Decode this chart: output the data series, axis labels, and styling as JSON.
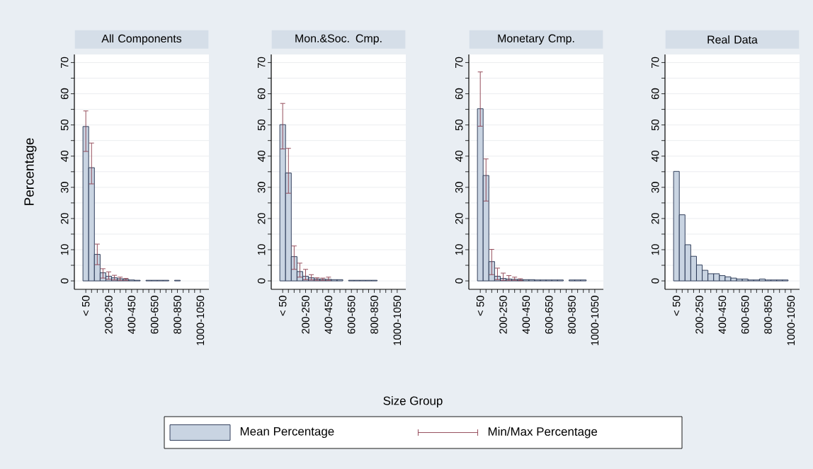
{
  "chart_data": [
    {
      "type": "bar",
      "title": "All Components",
      "ylabel": "Percentage",
      "legend": "bottom",
      "annotations": [
        "Min/Max Percentage"
      ],
      "categories": [
        "< 50",
        null,
        null,
        null,
        "200-250",
        null,
        null,
        null,
        "400-450",
        null,
        null,
        null,
        "600-650",
        null,
        null,
        null,
        "800-850",
        null,
        null,
        null,
        "1000-1050"
      ],
      "ylim": [
        -2.7,
        72.6
      ],
      "yticks": [
        0,
        {
          "value": 5,
          "label": null
        },
        10,
        {
          "value": 15,
          "label": null
        },
        20,
        {
          "value": 25,
          "label": null
        },
        30,
        {
          "value": 35,
          "label": null
        },
        40,
        {
          "value": 45,
          "label": null
        },
        50,
        {
          "value": 55,
          "label": null
        },
        60,
        {
          "value": 65,
          "label": null
        },
        70
      ],
      "grid": "y",
      "series": [
        {
          "name": "Mean Percentage",
          "color": "#c9d4e2",
          "values": [
            49.5,
            36.3,
            8.5,
            2.6,
            1.5,
            1.0,
            0.7,
            0.5,
            0.3,
            0.2,
            null,
            0.2,
            0.2,
            0.2,
            0.2,
            null,
            0.2,
            null,
            null,
            null,
            null
          ],
          "errors": [
            [
              41.4,
              54.6
            ],
            [
              31.0,
              44.3
            ],
            [
              5.1,
              11.9
            ],
            [
              0.8,
              4.0
            ],
            [
              0.4,
              3.0
            ],
            [
              0.2,
              1.9
            ],
            [
              0.1,
              1.3
            ],
            [
              0.1,
              0.9
            ],
            null,
            null,
            null,
            null,
            null,
            null,
            null,
            null,
            null,
            null,
            null,
            null,
            null
          ]
        }
      ]
    },
    {
      "type": "bar",
      "title": "Mon.&Soc. Cmp.",
      "xlabel": "Size Group",
      "categories": [
        "< 50",
        null,
        null,
        null,
        "200-250",
        null,
        null,
        null,
        "400-450",
        null,
        null,
        null,
        "600-650",
        null,
        null,
        null,
        "800-850",
        null,
        null,
        null,
        "1000-1050"
      ],
      "ylim": [
        -2.7,
        72.6
      ],
      "yticks": [
        0,
        {
          "value": 5,
          "label": null
        },
        10,
        {
          "value": 15,
          "label": null
        },
        20,
        {
          "value": 25,
          "label": null
        },
        30,
        {
          "value": 35,
          "label": null
        },
        40,
        {
          "value": 45,
          "label": null
        },
        50,
        {
          "value": 55,
          "label": null
        },
        60,
        {
          "value": 65,
          "label": null
        },
        70
      ],
      "grid": "y",
      "series": [
        {
          "color": "#c9d4e2",
          "values": [
            50.1,
            34.6,
            7.8,
            3.0,
            1.5,
            1.0,
            0.6,
            0.5,
            0.5,
            0.4,
            0.4,
            null,
            0.2,
            0.2,
            0.2,
            0.2,
            0.2,
            null,
            null,
            null,
            null
          ],
          "errors": [
            [
              42.2,
              57.0
            ],
            [
              28.0,
              42.6
            ],
            [
              3.6,
              11.3
            ],
            [
              1.1,
              5.8
            ],
            [
              0.3,
              3.8
            ],
            [
              0.2,
              2.1
            ],
            [
              0.1,
              1.1
            ],
            [
              0.1,
              1.0
            ],
            [
              0.1,
              1.3
            ],
            null,
            null,
            null,
            null,
            null,
            null,
            null,
            null,
            null,
            null,
            null,
            null
          ]
        }
      ]
    },
    {
      "type": "bar",
      "title": "Monetary Cmp.",
      "categories": [
        "< 50",
        null,
        null,
        null,
        "200-250",
        null,
        null,
        null,
        "400-450",
        null,
        null,
        null,
        "600-650",
        null,
        null,
        null,
        "800-850",
        null,
        null,
        null,
        "1000-1050"
      ],
      "ylim": [
        -2.7,
        72.6
      ],
      "yticks": [
        0,
        {
          "value": 5,
          "label": null
        },
        10,
        {
          "value": 15,
          "label": null
        },
        20,
        {
          "value": 25,
          "label": null
        },
        30,
        {
          "value": 35,
          "label": null
        },
        40,
        {
          "value": 45,
          "label": null
        },
        50,
        {
          "value": 55,
          "label": null
        },
        60,
        {
          "value": 65,
          "label": null
        },
        70
      ],
      "grid": "y",
      "series": [
        {
          "color": "#c9d4e2",
          "values": [
            55.2,
            33.8,
            6.2,
            1.5,
            0.8,
            0.6,
            0.5,
            0.4,
            0.4,
            0.4,
            0.3,
            0.3,
            0.3,
            0.3,
            0.3,
            null,
            0.3,
            0.3,
            0.3,
            null,
            null
          ],
          "errors": [
            [
              49.5,
              67.1
            ],
            [
              25.5,
              39.2
            ],
            [
              1.9,
              10.2
            ],
            [
              0.3,
              4.2
            ],
            [
              0.1,
              2.6
            ],
            [
              0.1,
              1.8
            ],
            [
              0.1,
              1.3
            ],
            [
              0,
              0.8
            ],
            null,
            null,
            null,
            null,
            null,
            null,
            null,
            null,
            null,
            null,
            null,
            null,
            null
          ]
        }
      ]
    },
    {
      "type": "bar",
      "title": "Real Data",
      "categories": [
        "< 50",
        null,
        null,
        null,
        "200-250",
        null,
        null,
        null,
        "400-450",
        null,
        null,
        null,
        "600-650",
        null,
        null,
        null,
        "800-850",
        null,
        null,
        null,
        "1000-1050"
      ],
      "ylim": [
        -2.7,
        72.6
      ],
      "yticks": [
        0,
        {
          "value": 5,
          "label": null
        },
        10,
        {
          "value": 15,
          "label": null
        },
        20,
        {
          "value": 25,
          "label": null
        },
        30,
        {
          "value": 35,
          "label": null
        },
        40,
        {
          "value": 45,
          "label": null
        },
        50,
        {
          "value": 55,
          "label": null
        },
        60,
        {
          "value": 65,
          "label": null
        },
        70
      ],
      "grid": "y",
      "series": [
        {
          "color": "#c9d4e2",
          "values": [
            35.1,
            21.2,
            11.6,
            7.9,
            5.1,
            3.4,
            2.3,
            2.3,
            1.7,
            1.3,
            0.9,
            0.6,
            0.6,
            0.3,
            0.3,
            0.6,
            0.3,
            0.3,
            0.3,
            0.3,
            null
          ]
        }
      ]
    }
  ]
}
